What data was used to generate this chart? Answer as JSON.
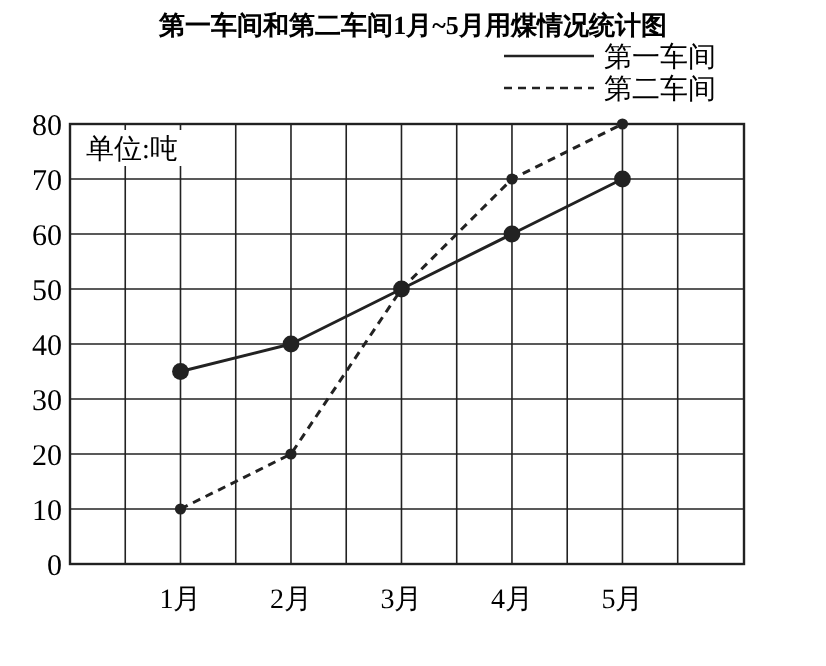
{
  "chart_data": {
    "type": "line",
    "title": "第一车间和第二车间1月~5月用煤情况统计图",
    "categories": [
      "1月",
      "2月",
      "3月",
      "4月",
      "5月"
    ],
    "series": [
      {
        "name": "第一车间",
        "color": "#222222",
        "values": [
          35,
          40,
          50,
          60,
          70
        ],
        "line_style": "solid"
      },
      {
        "name": "第二车间",
        "color": "#222222",
        "values": [
          10,
          20,
          50,
          70,
          80
        ],
        "line_style": "dashed"
      }
    ],
    "ylim": [
      0,
      80
    ],
    "yticks": [
      0,
      10,
      20,
      30,
      40,
      50,
      60,
      70,
      80
    ],
    "grid": true,
    "marker": "circle",
    "legend": "top right",
    "annotations": [
      "单位:吨"
    ]
  }
}
